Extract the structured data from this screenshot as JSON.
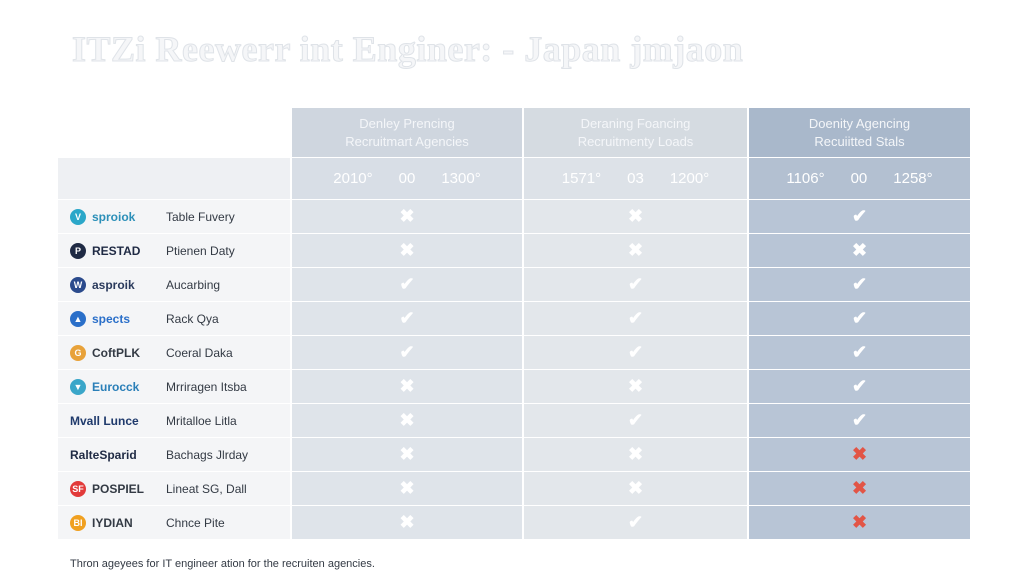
{
  "title": "ITZi Reewerr int Enginer: - Japan jmjaon",
  "columns": [
    {
      "line1": "Denley Prencing",
      "line2": "Recruitmart Agencies",
      "nums": [
        "2010°",
        "00",
        "1300°"
      ]
    },
    {
      "line1": "Deraning Foancing",
      "line2": "Recruitmenty Loads",
      "nums": [
        "1571°",
        "03",
        "1200°"
      ]
    },
    {
      "line1": "Doenity Agencing",
      "line2": "Recuiitted Stals",
      "nums": [
        "1106°",
        "00",
        "1258°"
      ]
    }
  ],
  "rows": [
    {
      "logo": "sproiok",
      "desc": "Table Fuvery",
      "icon_letter": "V",
      "icon_color": "#2ba7c9",
      "name_color": "#2b8fb8",
      "marks": [
        "✖",
        "✖",
        "✔"
      ],
      "mark_colors": [
        "white",
        "white",
        "white"
      ]
    },
    {
      "logo": "RESTAD",
      "desc": "Ptienen Daty",
      "icon_letter": "P",
      "icon_color": "#1f2a44",
      "name_color": "#1f2a44",
      "marks": [
        "✖",
        "✖",
        "✖"
      ],
      "mark_colors": [
        "white",
        "white",
        "white"
      ]
    },
    {
      "logo": "asproik",
      "desc": "Aucarbing",
      "icon_letter": "W",
      "icon_color": "#2a4a8c",
      "name_color": "#2a3a5c",
      "marks": [
        "✔",
        "✔",
        "✔"
      ],
      "mark_colors": [
        "white",
        "white",
        "white"
      ]
    },
    {
      "logo": "spects",
      "desc": "Rack Qya",
      "icon_letter": "▲",
      "icon_color": "#2a6fc9",
      "name_color": "#2a6fc9",
      "marks": [
        "✔",
        "✔",
        "✔"
      ],
      "mark_colors": [
        "white",
        "white",
        "white"
      ]
    },
    {
      "logo": "CoftPLK",
      "desc": "Coeral Daka",
      "icon_letter": "G",
      "icon_color": "#e8a23a",
      "name_color": "#333a44",
      "marks": [
        "✔",
        "✔",
        "✔"
      ],
      "mark_colors": [
        "white",
        "white",
        "white"
      ]
    },
    {
      "logo": "Eurocck",
      "desc": "Mrriragen Itsba",
      "icon_letter": "▼",
      "icon_color": "#3aa6c9",
      "name_color": "#2a7fb8",
      "marks": [
        "✖",
        "✖",
        "✔"
      ],
      "mark_colors": [
        "white",
        "white",
        "white"
      ]
    },
    {
      "logo": "Mvall Lunce",
      "desc": "Mritalloe Litla",
      "icon_letter": "",
      "icon_color": "",
      "name_color": "#1f3a6c",
      "marks": [
        "✖",
        "✔",
        "✔"
      ],
      "mark_colors": [
        "white",
        "white",
        "white"
      ]
    },
    {
      "logo": "RalteSparid",
      "desc": "Bachags Jlrday",
      "icon_letter": "",
      "icon_color": "",
      "name_color": "#1f2a44",
      "marks": [
        "✖",
        "✖",
        "✖"
      ],
      "mark_colors": [
        "white",
        "white",
        "red"
      ]
    },
    {
      "logo": "POSPIEL",
      "desc": "Lineat SG, Dall",
      "icon_letter": "SF",
      "icon_color": "#e23a3a",
      "name_color": "#333a44",
      "marks": [
        "✖",
        "✖",
        "✖"
      ],
      "mark_colors": [
        "white",
        "white",
        "red"
      ]
    },
    {
      "logo": "IYDIAN",
      "desc": "Chnce Pite",
      "icon_letter": "BI",
      "icon_color": "#f0a020",
      "name_color": "#333a44",
      "marks": [
        "✖",
        "✔",
        "✖"
      ],
      "mark_colors": [
        "white",
        "white",
        "red"
      ]
    }
  ],
  "footnote": "Thron ageyees for IT engineer ation for the recruiten agencies."
}
